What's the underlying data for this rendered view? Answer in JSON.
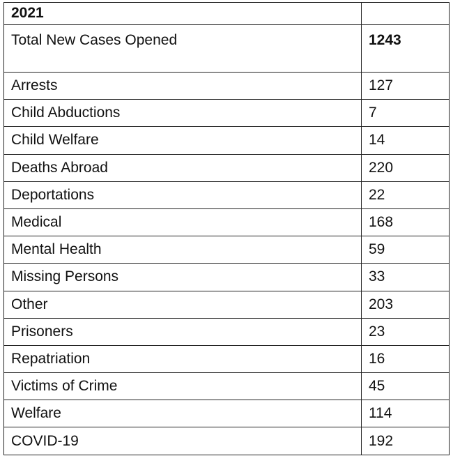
{
  "table": {
    "header": {
      "title": "2021"
    },
    "total": {
      "label": "Total New Cases Opened",
      "value": 1243
    },
    "rows": [
      [
        "Arrests",
        127
      ],
      [
        "Child Abductions",
        7
      ],
      [
        "Child Welfare",
        14
      ],
      [
        "Deaths Abroad",
        220
      ],
      [
        "Deportations",
        22
      ],
      [
        "Medical",
        168
      ],
      [
        "Mental Health",
        59
      ],
      [
        "Missing Persons",
        33
      ],
      [
        "Other",
        203
      ],
      [
        "Prisoners",
        23
      ],
      [
        "Repatriation",
        16
      ],
      [
        "Victims of Crime",
        45
      ],
      [
        "Welfare",
        114
      ],
      [
        "COVID-19",
        192
      ]
    ]
  }
}
